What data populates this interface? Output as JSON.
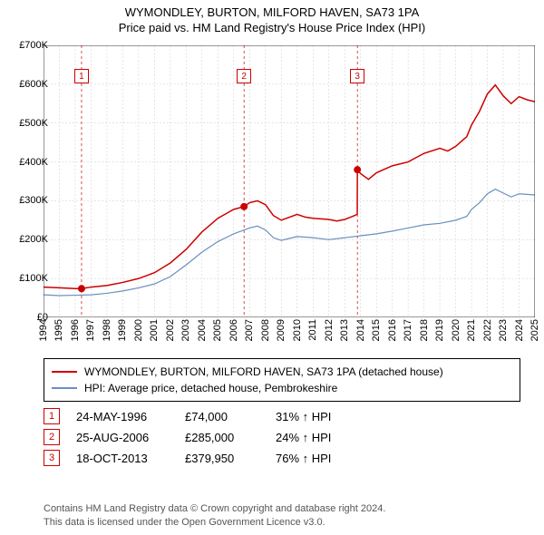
{
  "title1": "WYMONDLEY, BURTON, MILFORD HAVEN, SA73 1PA",
  "title2": "Price paid vs. HM Land Registry's House Price Index (HPI)",
  "x": {
    "min": 1994,
    "max": 2025,
    "ticks": [
      1994,
      1995,
      1996,
      1997,
      1998,
      1999,
      2000,
      2001,
      2002,
      2003,
      2004,
      2005,
      2006,
      2007,
      2008,
      2009,
      2010,
      2011,
      2012,
      2013,
      2014,
      2015,
      2016,
      2017,
      2018,
      2019,
      2020,
      2021,
      2022,
      2023,
      2024,
      2025
    ]
  },
  "y": {
    "min": 0,
    "max": 700000,
    "ticks": [
      0,
      100000,
      200000,
      300000,
      400000,
      500000,
      600000,
      700000
    ],
    "labels": [
      "£0",
      "£100K",
      "£200K",
      "£300K",
      "£400K",
      "£500K",
      "£600K",
      "£700K"
    ]
  },
  "grid_color": "#cccccc",
  "series": [
    {
      "name": "WYMONDLEY, BURTON, MILFORD HAVEN, SA73 1PA (detached house)",
      "color": "#cc0000",
      "width": 1.5,
      "pts": [
        [
          1994,
          78000
        ],
        [
          1995,
          76000
        ],
        [
          1996,
          74000
        ],
        [
          1996.4,
          74000
        ],
        [
          1997,
          78000
        ],
        [
          1998,
          82000
        ],
        [
          1999,
          90000
        ],
        [
          2000,
          100000
        ],
        [
          2001,
          115000
        ],
        [
          2002,
          140000
        ],
        [
          2003,
          175000
        ],
        [
          2004,
          220000
        ],
        [
          2005,
          255000
        ],
        [
          2006,
          278000
        ],
        [
          2006.65,
          285000
        ],
        [
          2007,
          295000
        ],
        [
          2007.5,
          300000
        ],
        [
          2008,
          290000
        ],
        [
          2008.5,
          262000
        ],
        [
          2009,
          250000
        ],
        [
          2010,
          265000
        ],
        [
          2010.5,
          258000
        ],
        [
          2011,
          255000
        ],
        [
          2012,
          252000
        ],
        [
          2012.5,
          248000
        ],
        [
          2013,
          252000
        ],
        [
          2013.5,
          260000
        ],
        [
          2013.79,
          265000
        ],
        [
          2013.8,
          379950
        ],
        [
          2014,
          370000
        ],
        [
          2014.5,
          355000
        ],
        [
          2015,
          372000
        ],
        [
          2016,
          390000
        ],
        [
          2017,
          400000
        ],
        [
          2018,
          422000
        ],
        [
          2019,
          435000
        ],
        [
          2019.5,
          428000
        ],
        [
          2020,
          440000
        ],
        [
          2020.7,
          465000
        ],
        [
          2021,
          495000
        ],
        [
          2021.5,
          530000
        ],
        [
          2022,
          575000
        ],
        [
          2022.5,
          598000
        ],
        [
          2023,
          570000
        ],
        [
          2023.5,
          550000
        ],
        [
          2024,
          568000
        ],
        [
          2024.5,
          560000
        ],
        [
          2025,
          555000
        ]
      ]
    },
    {
      "name": "HPI: Average price, detached house, Pembrokeshire",
      "color": "#6a8fbf",
      "width": 1.2,
      "pts": [
        [
          1994,
          58000
        ],
        [
          1995,
          56000
        ],
        [
          1996,
          57000
        ],
        [
          1997,
          58000
        ],
        [
          1998,
          62000
        ],
        [
          1999,
          68000
        ],
        [
          2000,
          76000
        ],
        [
          2001,
          86000
        ],
        [
          2002,
          105000
        ],
        [
          2003,
          135000
        ],
        [
          2004,
          168000
        ],
        [
          2005,
          195000
        ],
        [
          2006,
          215000
        ],
        [
          2007,
          230000
        ],
        [
          2007.5,
          235000
        ],
        [
          2008,
          225000
        ],
        [
          2008.5,
          205000
        ],
        [
          2009,
          198000
        ],
        [
          2010,
          208000
        ],
        [
          2011,
          205000
        ],
        [
          2012,
          200000
        ],
        [
          2013,
          205000
        ],
        [
          2014,
          210000
        ],
        [
          2015,
          215000
        ],
        [
          2016,
          222000
        ],
        [
          2017,
          230000
        ],
        [
          2018,
          238000
        ],
        [
          2019,
          242000
        ],
        [
          2020,
          250000
        ],
        [
          2020.7,
          260000
        ],
        [
          2021,
          278000
        ],
        [
          2021.5,
          295000
        ],
        [
          2022,
          318000
        ],
        [
          2022.5,
          330000
        ],
        [
          2023,
          320000
        ],
        [
          2023.5,
          310000
        ],
        [
          2024,
          318000
        ],
        [
          2025,
          315000
        ]
      ]
    }
  ],
  "sale_markers": [
    {
      "n": "1",
      "year": 1996.4,
      "price": 74000,
      "box_y": 620000
    },
    {
      "n": "2",
      "year": 2006.65,
      "price": 285000,
      "box_y": 620000
    },
    {
      "n": "3",
      "year": 2013.8,
      "price": 379950,
      "box_y": 620000
    }
  ],
  "marker_line_color": "#cc0000",
  "marker_dot_color": "#cc0000",
  "legend": [
    {
      "color": "#cc0000",
      "label": "WYMONDLEY, BURTON, MILFORD HAVEN, SA73 1PA (detached house)"
    },
    {
      "color": "#6a8fbf",
      "label": "HPI: Average price, detached house, Pembrokeshire"
    }
  ],
  "sales": [
    {
      "n": "1",
      "date": "24-MAY-1996",
      "price": "£74,000",
      "pct": "31% ↑ HPI"
    },
    {
      "n": "2",
      "date": "25-AUG-2006",
      "price": "£285,000",
      "pct": "24% ↑ HPI"
    },
    {
      "n": "3",
      "date": "18-OCT-2013",
      "price": "£379,950",
      "pct": "76% ↑ HPI"
    }
  ],
  "footnote1": "Contains HM Land Registry data © Crown copyright and database right 2024.",
  "footnote2": "This data is licensed under the Open Government Licence v3.0."
}
